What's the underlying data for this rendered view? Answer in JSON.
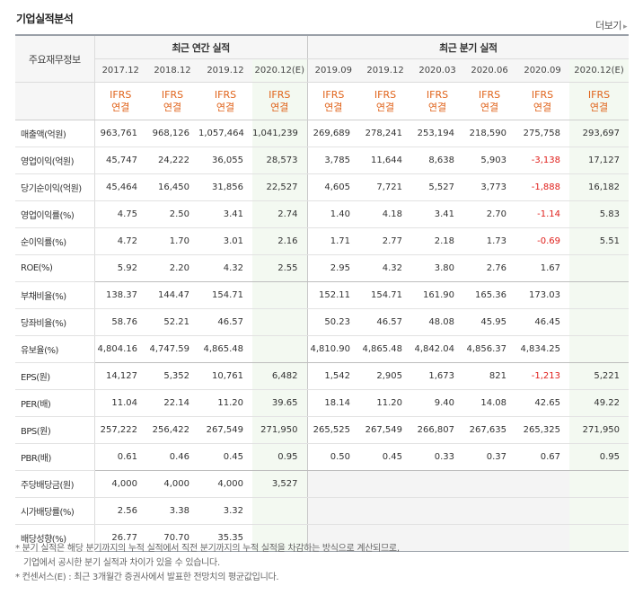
{
  "title": "기업실적분석",
  "more_label": "더보기",
  "corner_label": "주요재무정보",
  "groups": {
    "annual": "최근 연간 실적",
    "quarter": "최근 분기 실적"
  },
  "periods": [
    "2017.12",
    "2018.12",
    "2019.12",
    "2020.12(E)",
    "2019.09",
    "2019.12",
    "2020.03",
    "2020.06",
    "2020.09",
    "2020.12(E)"
  ],
  "basis_top": "IFRS",
  "basis_bottom": "연결",
  "rows": [
    {
      "label": "매출액(억원)",
      "values": [
        "963,761",
        "968,126",
        "1,057,464",
        "1,041,239",
        "269,689",
        "278,241",
        "253,194",
        "218,590",
        "275,758",
        "293,697"
      ]
    },
    {
      "label": "영업이익(억원)",
      "values": [
        "45,747",
        "24,222",
        "36,055",
        "28,573",
        "3,785",
        "11,644",
        "8,638",
        "5,903",
        "-3,138",
        "17,127"
      ]
    },
    {
      "label": "당기순이익(억원)",
      "values": [
        "45,464",
        "16,450",
        "31,856",
        "22,527",
        "4,605",
        "7,721",
        "5,527",
        "3,773",
        "-1,888",
        "16,182"
      ]
    },
    {
      "label": "영업이익률(%)",
      "values": [
        "4.75",
        "2.50",
        "3.41",
        "2.74",
        "1.40",
        "4.18",
        "3.41",
        "2.70",
        "-1.14",
        "5.83"
      ]
    },
    {
      "label": "순이익률(%)",
      "values": [
        "4.72",
        "1.70",
        "3.01",
        "2.16",
        "1.71",
        "2.77",
        "2.18",
        "1.73",
        "-0.69",
        "5.51"
      ]
    },
    {
      "label": "ROE(%)",
      "values": [
        "5.92",
        "2.20",
        "4.32",
        "2.55",
        "2.95",
        "4.32",
        "3.80",
        "2.76",
        "1.67",
        ""
      ]
    },
    {
      "label": "부채비율(%)",
      "values": [
        "138.37",
        "144.47",
        "154.71",
        "",
        "152.11",
        "154.71",
        "161.90",
        "165.36",
        "173.03",
        ""
      ]
    },
    {
      "label": "당좌비율(%)",
      "values": [
        "58.76",
        "52.21",
        "46.57",
        "",
        "50.23",
        "46.57",
        "48.08",
        "45.95",
        "46.45",
        ""
      ]
    },
    {
      "label": "유보율(%)",
      "values": [
        "4,804.16",
        "4,747.59",
        "4,865.48",
        "",
        "4,810.90",
        "4,865.48",
        "4,842.04",
        "4,856.37",
        "4,834.25",
        ""
      ]
    },
    {
      "label": "EPS(원)",
      "values": [
        "14,127",
        "5,352",
        "10,761",
        "6,482",
        "1,542",
        "2,905",
        "1,673",
        "821",
        "-1,213",
        "5,221"
      ]
    },
    {
      "label": "PER(배)",
      "values": [
        "11.04",
        "22.14",
        "11.20",
        "39.65",
        "18.14",
        "11.20",
        "9.40",
        "14.08",
        "42.65",
        "49.22"
      ]
    },
    {
      "label": "BPS(원)",
      "values": [
        "257,222",
        "256,422",
        "267,549",
        "271,950",
        "265,525",
        "267,549",
        "266,807",
        "267,635",
        "265,325",
        "271,950"
      ]
    },
    {
      "label": "PBR(배)",
      "values": [
        "0.61",
        "0.46",
        "0.45",
        "0.95",
        "0.50",
        "0.45",
        "0.33",
        "0.37",
        "0.67",
        "0.95"
      ]
    },
    {
      "label": "주당배당금(원)",
      "values": [
        "4,000",
        "4,000",
        "4,000",
        "3,527",
        "",
        "",
        "",
        "",
        "",
        ""
      ]
    },
    {
      "label": "시가배당률(%)",
      "values": [
        "2.56",
        "3.38",
        "3.32",
        "",
        "",
        "",
        "",
        "",
        "",
        ""
      ]
    },
    {
      "label": "배당성향(%)",
      "values": [
        "26.77",
        "70.70",
        "35.35",
        "",
        "",
        "",
        "",
        "",
        "",
        ""
      ]
    }
  ],
  "notes": [
    "* 분기 실적은 해당 분기까지의 누적 실적에서 직전 분기까지의 누적 실적을 차감하는 방식으로 계산되므로,",
    "기업에서 공시한 분기 실적과 차이가 있을 수 있습니다.",
    "* 컨센서스(E) : 최근 3개월간 증권사에서 발표한 전망치의 평균값입니다."
  ]
}
